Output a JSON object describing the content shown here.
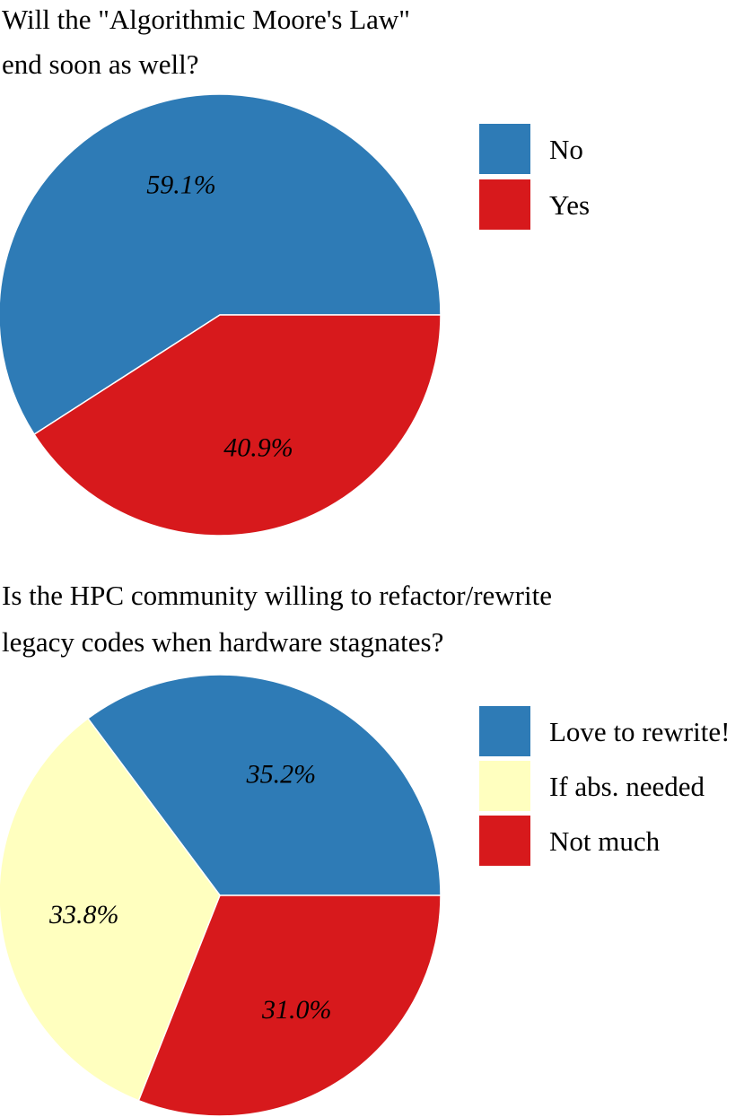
{
  "chart_data": [
    {
      "type": "pie",
      "title": "Will the \"Algorithmic Moore's Law\" end soon as well?",
      "title_lines": [
        "Will the \"Algorithmic Moore's Law\"",
        "end soon as well?"
      ],
      "categories": [
        "No",
        "Yes"
      ],
      "values": [
        59.1,
        40.9
      ],
      "value_labels": [
        "59.1%",
        "40.9%"
      ],
      "colors": [
        "#2e7bb6",
        "#d7191c"
      ],
      "legend": {
        "placement": "right",
        "entries": [
          "No",
          "Yes"
        ]
      },
      "start_angle_deg": 0,
      "direction": "counterclockwise"
    },
    {
      "type": "pie",
      "title": "Is the HPC community willing to refactor/rewrite legacy codes when hardware stagnates?",
      "title_lines": [
        "Is the HPC community willing to refactor/rewrite",
        "legacy codes when hardware stagnates?"
      ],
      "categories": [
        "Love to rewrite!",
        "If abs. needed",
        "Not much"
      ],
      "values": [
        35.2,
        33.8,
        31.0
      ],
      "value_labels": [
        "35.2%",
        "33.8%",
        "31.0%"
      ],
      "colors": [
        "#2e7bb6",
        "#ffffbf",
        "#d7191c"
      ],
      "legend": {
        "placement": "right",
        "entries": [
          "Love to rewrite!",
          "If abs. needed",
          "Not much"
        ]
      },
      "start_angle_deg": 0,
      "direction": "counterclockwise"
    }
  ]
}
